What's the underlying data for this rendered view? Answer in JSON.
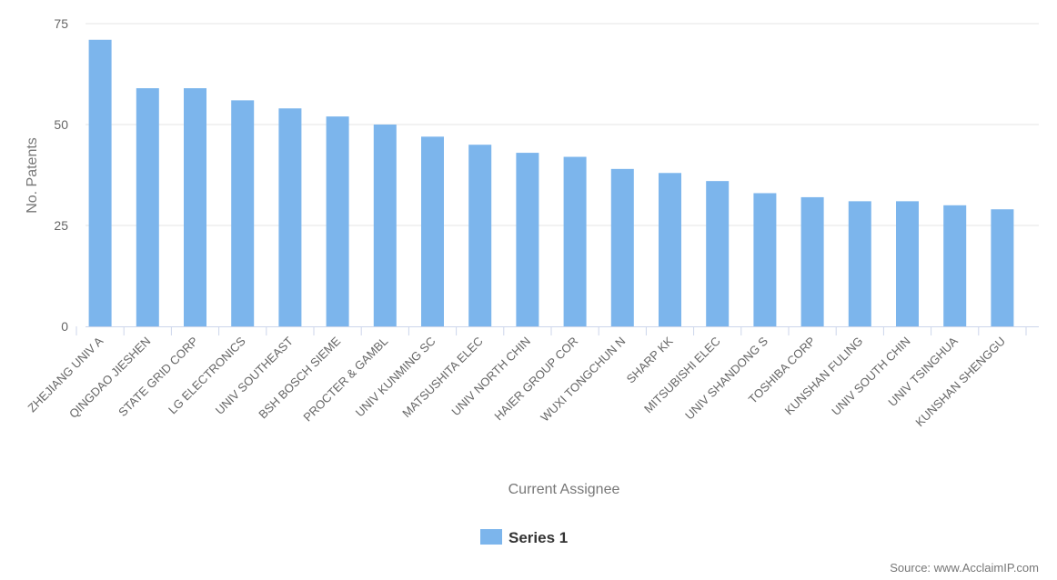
{
  "chart_data": {
    "type": "bar",
    "categories": [
      "ZHEJIANG UNIV A",
      "QINGDAO JIESHEN",
      "STATE GRID CORP",
      "LG ELECTRONICS",
      "UNIV SOUTHEAST",
      "BSH BOSCH SIEME",
      "PROCTER & GAMBL",
      "UNIV KUNMING SC",
      "MATSUSHITA ELEC",
      "UNIV NORTH CHIN",
      "HAIER GROUP COR",
      "WUXI TONGCHUN N",
      "SHARP KK",
      "MITSUBISHI ELEC",
      "UNIV SHANDONG S",
      "TOSHIBA CORP",
      "KUNSHAN FULING",
      "UNIV SOUTH CHIN",
      "UNIV TSINGHUA",
      "KUNSHAN SHENGGU"
    ],
    "series": [
      {
        "name": "Series 1",
        "color": "#7cb5ec",
        "values": [
          71,
          59,
          59,
          56,
          54,
          52,
          50,
          47,
          45,
          43,
          42,
          39,
          38,
          36,
          33,
          32,
          31,
          31,
          30,
          29
        ]
      }
    ],
    "xlabel": "Current Assignee",
    "ylabel": "No. Patents",
    "ylim": [
      0,
      75
    ],
    "yticks": [
      0,
      25,
      50,
      75
    ],
    "grid": true,
    "legend": "bottom-center"
  },
  "legend": {
    "label": "Series 1"
  },
  "source": "Source: www.AcclaimIP.com",
  "colors": {
    "bar": "#7cb5ec",
    "grid": "#e6e6e6",
    "axis": "#ccd6eb"
  }
}
